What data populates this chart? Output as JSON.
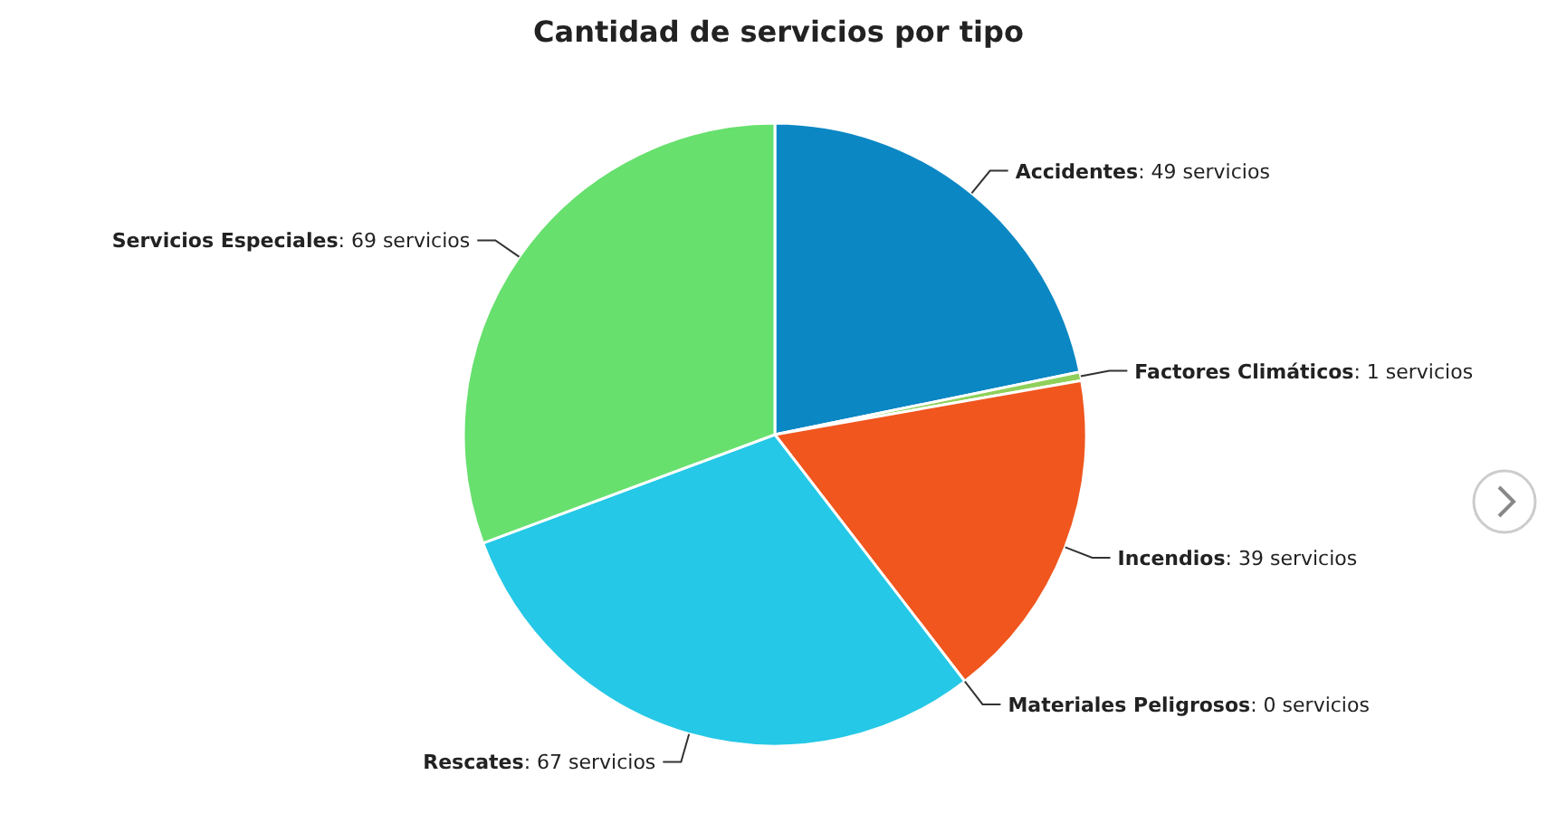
{
  "chart_data": {
    "type": "pie",
    "title": "Cantidad de servicios por tipo",
    "categories": [
      "Accidentes",
      "Factores Climáticos",
      "Incendios",
      "Materiales Peligrosos",
      "Rescates",
      "Servicios Especiales"
    ],
    "values": [
      49,
      1,
      39,
      0,
      67,
      69
    ],
    "value_labels": [
      ": 49 servicios",
      ": 1 servicios",
      ": 39 servicios",
      ": 0 servicios",
      ": 67 servicios",
      ": 69 servicios"
    ],
    "colors": [
      "#0b87c4",
      "#8fd05a",
      "#f0561e",
      "#7a3fa0",
      "#25c8e6",
      "#67e06e"
    ]
  }
}
